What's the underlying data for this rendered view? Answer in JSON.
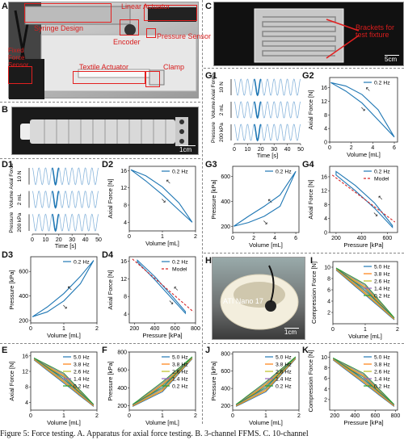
{
  "panels": {
    "A": {
      "letter": "A",
      "labels": {
        "syringe": "Syringe Design",
        "linear": "Linear Actuator",
        "encoder": "Encoder",
        "pressure": "Pressure Sensor",
        "fixed": "Fixed Force Sensor",
        "textile": "Textile Actuator",
        "clamp": "Clamp"
      }
    },
    "B": {
      "letter": "B",
      "scale": "1cm"
    },
    "C": {
      "letter": "C",
      "label": "Brackets for test fixture",
      "scale": "5cm"
    },
    "D1": {
      "letter": "D1"
    },
    "D2": {
      "letter": "D2"
    },
    "D3": {
      "letter": "D3"
    },
    "D4": {
      "letter": "D4"
    },
    "E": {
      "letter": "E"
    },
    "F": {
      "letter": "F"
    },
    "G1": {
      "letter": "G1"
    },
    "G2": {
      "letter": "G2"
    },
    "G3": {
      "letter": "G3"
    },
    "G4": {
      "letter": "G4"
    },
    "H": {
      "letter": "H",
      "label": "ATI Nano 17",
      "scale": "1cm"
    },
    "I": {
      "letter": "I"
    },
    "J": {
      "letter": "J"
    },
    "K": {
      "letter": "K"
    }
  },
  "caption": "Figure 5:   Force testing.  A. Apparatus for axial force testing.  B. 3-channel FFMS. C. 10-channel",
  "colors": {
    "blue": "#1f77b4",
    "red": "#d62728",
    "orange": "#ff7f0e",
    "green": "#2ca02c",
    "purple": "#9467bd",
    "yellow": "#bcbd22"
  },
  "chart_data": [
    {
      "id": "D1",
      "type": "line",
      "x": {
        "label": "Time [s]",
        "ticks": [
          "0",
          "10",
          "20",
          "30",
          "40",
          "50"
        ],
        "range": [
          0,
          50
        ]
      },
      "rows": [
        {
          "label": "Axial Force",
          "scale": "10 N"
        },
        {
          "label": "Volume",
          "scale": "2 mL"
        },
        {
          "label": "Pressure",
          "scale": "200 kPa"
        }
      ]
    },
    {
      "id": "D2",
      "type": "line",
      "xlabel": "Volume [mL]",
      "ylabel": "Axial Force [N]",
      "xticks": [
        "0",
        "1",
        "2"
      ],
      "yticks": [
        "4",
        "8",
        "12",
        "16"
      ],
      "xlim": [
        0,
        2
      ],
      "ylim": [
        2,
        17
      ],
      "legend": [
        "0.2 Hz"
      ],
      "series": [
        {
          "name": "0.2 Hz",
          "upper": [
            [
              0.05,
              16.2
            ],
            [
              0.5,
              14.8
            ],
            [
              1.0,
              12.2
            ],
            [
              1.5,
              8.5
            ],
            [
              1.9,
              4.0
            ]
          ],
          "lower": [
            [
              0.05,
              16.2
            ],
            [
              0.5,
              13.6
            ],
            [
              1.0,
              10.4
            ],
            [
              1.5,
              6.8
            ],
            [
              1.9,
              4.0
            ]
          ]
        }
      ]
    },
    {
      "id": "D3",
      "type": "line",
      "xlabel": "Volume [mL]",
      "ylabel": "Pressure [kPa]",
      "xticks": [
        "0",
        "1",
        "2"
      ],
      "yticks": [
        "200",
        "400",
        "600"
      ],
      "xlim": [
        0,
        2
      ],
      "ylim": [
        180,
        720
      ],
      "legend": [
        "0.2 Hz"
      ],
      "series": [
        {
          "name": "0.2 Hz",
          "upper": [
            [
              0.05,
              230
            ],
            [
              0.5,
              310
            ],
            [
              1.0,
              420
            ],
            [
              1.5,
              560
            ],
            [
              1.9,
              690
            ]
          ],
          "lower": [
            [
              0.05,
              230
            ],
            [
              0.5,
              270
            ],
            [
              1.0,
              360
            ],
            [
              1.5,
              500
            ],
            [
              1.9,
              690
            ]
          ]
        }
      ]
    },
    {
      "id": "D4",
      "type": "line",
      "xlabel": "Pressure [kPa]",
      "ylabel": "Axial Force [N]",
      "xticks": [
        "200",
        "400",
        "600",
        "800"
      ],
      "yticks": [
        "4",
        "8",
        "12",
        "16"
      ],
      "xlim": [
        150,
        800
      ],
      "ylim": [
        2,
        17
      ],
      "legend": [
        "0.2 Hz",
        "Model"
      ],
      "series": [
        {
          "name": "0.2 Hz",
          "upper": [
            [
              230,
              16.2
            ],
            [
              400,
              12.5
            ],
            [
              550,
              8.6
            ],
            [
              700,
              4.6
            ]
          ],
          "lower": [
            [
              230,
              15.8
            ],
            [
              400,
              11.8
            ],
            [
              550,
              8.0
            ],
            [
              700,
              4.2
            ]
          ]
        },
        {
          "name": "Model",
          "line": [
            [
              180,
              16.5
            ],
            [
              780,
              4.5
            ]
          ]
        }
      ]
    },
    {
      "id": "E",
      "type": "line",
      "xlabel": "Volume [mL]",
      "ylabel": "Axial Force [N]",
      "xticks": [
        "0",
        "1",
        "2"
      ],
      "yticks": [
        "4",
        "8",
        "12",
        "16"
      ],
      "xlim": [
        0,
        2
      ],
      "ylim": [
        2,
        17
      ],
      "legend": [
        "5.0 Hz",
        "3.8 Hz",
        "2.6 Hz",
        "1.4 Hz",
        "0.2 Hz"
      ]
    },
    {
      "id": "F",
      "type": "line",
      "xlabel": "Volume [mL]",
      "ylabel": "Pressure [kPa]",
      "xticks": [
        "0",
        "1",
        "2"
      ],
      "yticks": [
        "200",
        "400",
        "600",
        "800"
      ],
      "xlim": [
        0,
        2
      ],
      "ylim": [
        150,
        800
      ],
      "legend": [
        "5.0 Hz",
        "3.8 Hz",
        "2.6 Hz",
        "1.4 Hz",
        "0.2 Hz"
      ]
    },
    {
      "id": "G1",
      "type": "line",
      "x": {
        "label": "Time [s]",
        "ticks": [
          "0",
          "10",
          "20",
          "30",
          "40",
          "50"
        ],
        "range": [
          0,
          50
        ]
      },
      "rows": [
        {
          "label": "Axial Force",
          "scale": "10 N"
        },
        {
          "label": "Volume",
          "scale": "2 mL"
        },
        {
          "label": "Pressure",
          "scale": "200 kPa"
        }
      ]
    },
    {
      "id": "G2",
      "type": "line",
      "xlabel": "Volume [mL]",
      "ylabel": "Axial Force [N]",
      "xticks": [
        "0",
        "2",
        "4",
        "6"
      ],
      "yticks": [
        "0",
        "4",
        "8",
        "12",
        "16"
      ],
      "xlim": [
        0,
        6.3
      ],
      "ylim": [
        0,
        19
      ],
      "legend": [
        "0.2 Hz"
      ],
      "series": [
        {
          "name": "0.2 Hz",
          "upper": [
            [
              0.1,
              17.5
            ],
            [
              1.5,
              16.5
            ],
            [
              3,
              14
            ],
            [
              4.5,
              9.5
            ],
            [
              6,
              1.5
            ]
          ],
          "lower": [
            [
              0.1,
              17.5
            ],
            [
              1.5,
              15
            ],
            [
              3,
              11.5
            ],
            [
              4.5,
              6.5
            ],
            [
              6,
              1.5
            ]
          ]
        }
      ]
    },
    {
      "id": "G3",
      "type": "line",
      "xlabel": "Volume [mL]",
      "ylabel": "Pressure [kPa]",
      "xticks": [
        "0",
        "2",
        "4",
        "6"
      ],
      "yticks": [
        "200",
        "400",
        "600"
      ],
      "xlim": [
        0,
        6.3
      ],
      "ylim": [
        150,
        680
      ],
      "legend": [
        "0.2 Hz"
      ],
      "series": [
        {
          "name": "0.2 Hz",
          "upper": [
            [
              0.1,
              200
            ],
            [
              1.5,
              280
            ],
            [
              3,
              360
            ],
            [
              4.5,
              450
            ],
            [
              6,
              640
            ]
          ],
          "lower": [
            [
              0.1,
              200
            ],
            [
              1.5,
              230
            ],
            [
              3,
              280
            ],
            [
              4.5,
              360
            ],
            [
              6,
              640
            ]
          ]
        }
      ]
    },
    {
      "id": "G4",
      "type": "line",
      "xlabel": "Pressure [kPa]",
      "ylabel": "Axial Force [N]",
      "xticks": [
        "200",
        "400",
        "600"
      ],
      "yticks": [
        "0",
        "4",
        "8",
        "12",
        "16"
      ],
      "xlim": [
        150,
        680
      ],
      "ylim": [
        0,
        19
      ],
      "legend": [
        "0.2 Hz",
        "Model"
      ],
      "series": [
        {
          "name": "0.2 Hz",
          "upper": [
            [
              200,
              17.5
            ],
            [
              350,
              13.5
            ],
            [
              500,
              8.5
            ],
            [
              640,
              2
            ]
          ],
          "lower": [
            [
              200,
              16.5
            ],
            [
              350,
              12
            ],
            [
              500,
              7
            ],
            [
              640,
              1.5
            ]
          ]
        },
        {
          "name": "Model",
          "line": [
            [
              170,
              16.5
            ],
            [
              660,
              3
            ]
          ]
        }
      ]
    },
    {
      "id": "I",
      "type": "line",
      "xlabel": "Volume [mL]",
      "ylabel": "Compression Force [N]",
      "xticks": [
        "0",
        "1",
        "2"
      ],
      "yticks": [
        "2",
        "4",
        "6",
        "8",
        "10"
      ],
      "xlim": [
        0,
        2
      ],
      "ylim": [
        0,
        11
      ],
      "legend": [
        "5.0 Hz",
        "3.8 Hz",
        "2.6 Hz",
        "1.4 Hz",
        "0.2 Hz"
      ]
    },
    {
      "id": "J",
      "type": "line",
      "xlabel": "Volume [mL]",
      "ylabel": "Pressure [kPa]",
      "xticks": [
        "0",
        "1",
        "2"
      ],
      "yticks": [
        "200",
        "400",
        "600",
        "800"
      ],
      "xlim": [
        0,
        2
      ],
      "ylim": [
        150,
        820
      ],
      "legend": [
        "5.0 Hz",
        "3.8 Hz",
        "2.6 Hz",
        "1.4 Hz",
        "0.2 Hz"
      ]
    },
    {
      "id": "K",
      "type": "line",
      "xlabel": "Pressure [kPa]",
      "ylabel": "Compression Force [N]",
      "xticks": [
        "200",
        "400",
        "600",
        "800"
      ],
      "yticks": [
        "2",
        "4",
        "6",
        "8",
        "10"
      ],
      "xlim": [
        150,
        820
      ],
      "ylim": [
        0,
        11
      ],
      "legend": [
        "5.0 Hz",
        "3.8 Hz",
        "2.6 Hz",
        "1.4 Hz",
        "0.2 Hz"
      ]
    }
  ]
}
